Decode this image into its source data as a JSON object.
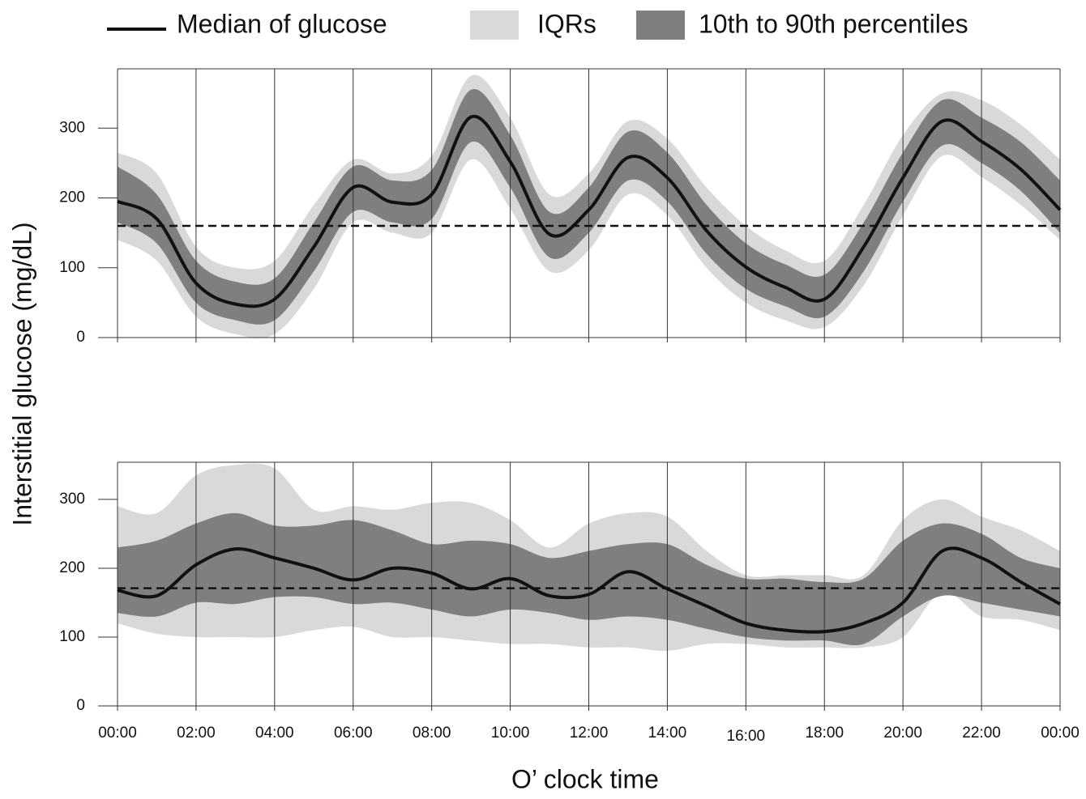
{
  "legend": [
    {
      "name": "Median of glucose",
      "color": "#111111"
    },
    {
      "name": "IQRs",
      "color": "#d9d9d9"
    },
    {
      "name": "10th to 90th percentiles",
      "color": "#7f7f7f"
    }
  ],
  "y_label": "Interstitial glucose (mg/dL)",
  "x_label": "O’ clock time",
  "chart_data": [
    {
      "type": "band-line",
      "x": [
        0,
        1,
        2,
        3,
        4,
        5,
        6,
        7,
        8,
        9,
        10,
        11,
        12,
        13,
        14,
        15,
        16,
        17,
        18,
        19,
        20,
        21,
        22,
        23,
        24
      ],
      "xlim": [
        0,
        24
      ],
      "xticks": [
        0,
        2,
        4,
        6,
        8,
        10,
        12,
        14,
        16,
        18,
        20,
        22,
        24
      ],
      "ylim": [
        0,
        385
      ],
      "yticks": [
        0,
        100,
        200,
        300
      ],
      "reference": 160,
      "series": [
        {
          "values": [
            195,
            170,
            78,
            48,
            55,
            130,
            215,
            194,
            205,
            316,
            252,
            148,
            183,
            258,
            229,
            153,
            101,
            72,
            55,
            130,
            229,
            310,
            281,
            241,
            183
          ]
        },
        {
          "upper": [
            265,
            235,
            130,
            100,
            110,
            190,
            255,
            235,
            260,
            375,
            315,
            205,
            235,
            310,
            285,
            215,
            160,
            125,
            110,
            190,
            290,
            350,
            340,
            305,
            255
          ],
          "lower": [
            140,
            110,
            30,
            5,
            5,
            70,
            165,
            150,
            150,
            255,
            185,
            95,
            125,
            205,
            175,
            100,
            50,
            25,
            15,
            75,
            175,
            260,
            230,
            190,
            140
          ]
        },
        {
          "upper": [
            245,
            205,
            110,
            80,
            85,
            165,
            245,
            225,
            240,
            355,
            290,
            180,
            215,
            295,
            265,
            190,
            135,
            105,
            90,
            165,
            265,
            340,
            315,
            280,
            225
          ],
          "lower": [
            165,
            135,
            50,
            25,
            25,
            95,
            180,
            165,
            170,
            280,
            215,
            115,
            150,
            225,
            195,
            120,
            70,
            45,
            30,
            95,
            195,
            275,
            250,
            210,
            150
          ]
        }
      ]
    },
    {
      "type": "band-line",
      "x": [
        0,
        1,
        2,
        3,
        4,
        5,
        6,
        7,
        8,
        9,
        10,
        11,
        12,
        13,
        14,
        15,
        16,
        17,
        18,
        19,
        20,
        21,
        22,
        23,
        24
      ],
      "xlim": [
        0,
        24
      ],
      "xticks": [
        {
          "value": 0,
          "label": "00:00"
        },
        {
          "value": 2,
          "label": "02:00"
        },
        {
          "value": 4,
          "label": "04:00"
        },
        {
          "value": 6,
          "label": "06:00"
        },
        {
          "value": 8,
          "label": "08:00"
        },
        {
          "value": 10,
          "label": "10:00"
        },
        {
          "value": 12,
          "label": "12:00"
        },
        {
          "value": 14,
          "label": "14:00"
        },
        {
          "value": 16,
          "label": "16:00"
        },
        {
          "value": 18,
          "label": "18:00"
        },
        {
          "value": 20,
          "label": "20:00"
        },
        {
          "value": 22,
          "label": "22:00"
        },
        {
          "value": 24,
          "label": "00:00"
        }
      ],
      "ylim": [
        0,
        354
      ],
      "yticks": [
        0,
        100,
        200,
        300
      ],
      "reference": 171,
      "series": [
        {
          "values": [
            168,
            160,
            205,
            228,
            215,
            200,
            183,
            200,
            193,
            170,
            185,
            160,
            162,
            195,
            170,
            145,
            120,
            110,
            108,
            120,
            150,
            225,
            215,
            180,
            148
          ]
        },
        {
          "upper": [
            290,
            280,
            335,
            350,
            345,
            285,
            290,
            285,
            295,
            295,
            270,
            230,
            265,
            280,
            275,
            225,
            190,
            190,
            190,
            190,
            270,
            300,
            275,
            255,
            225
          ],
          "lower": [
            120,
            105,
            100,
            100,
            100,
            110,
            115,
            100,
            100,
            95,
            90,
            90,
            85,
            85,
            80,
            90,
            90,
            85,
            85,
            85,
            100,
            165,
            130,
            125,
            110
          ]
        },
        {
          "upper": [
            230,
            240,
            265,
            280,
            262,
            262,
            270,
            255,
            235,
            240,
            235,
            215,
            225,
            235,
            235,
            205,
            185,
            185,
            180,
            185,
            240,
            265,
            250,
            215,
            200
          ],
          "lower": [
            135,
            130,
            150,
            148,
            158,
            158,
            148,
            150,
            140,
            130,
            140,
            135,
            125,
            130,
            125,
            112,
            100,
            95,
            95,
            90,
            130,
            160,
            150,
            140,
            130
          ]
        }
      ]
    }
  ]
}
